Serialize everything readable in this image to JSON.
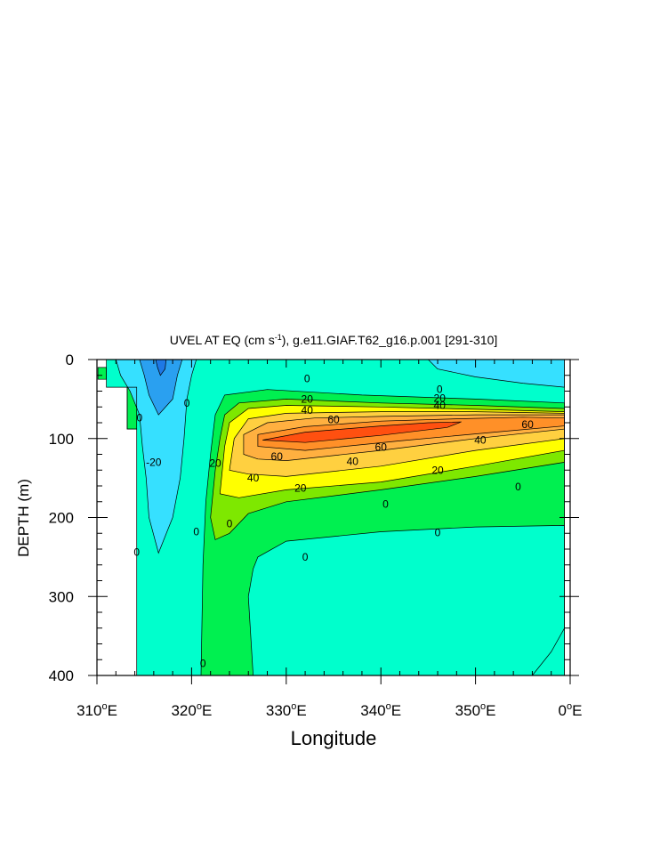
{
  "chart_data": {
    "type": "contour",
    "title": "UVEL AT EQ (cm s⁻¹), g.e11.GIAF.T62_g16.p.001 [291-310]",
    "title_main": "UVEL AT EQ (cm s",
    "title_sup": "-1",
    "title_rest": "), g.e11.GIAF.T62_g16.p.001 [291-310]",
    "xlabel": "Longitude",
    "ylabel": "DEPTH (m)",
    "xlim": [
      310,
      360
    ],
    "ylim": [
      0,
      400
    ],
    "y_inverted": true,
    "x_ticks": [
      {
        "value": 310,
        "num": "310",
        "deg": "o",
        "suf": "E"
      },
      {
        "value": 320,
        "num": "320",
        "deg": "o",
        "suf": "E"
      },
      {
        "value": 330,
        "num": "330",
        "deg": "o",
        "suf": "E"
      },
      {
        "value": 340,
        "num": "340",
        "deg": "o",
        "suf": "E"
      },
      {
        "value": 350,
        "num": "350",
        "deg": "o",
        "suf": "E"
      },
      {
        "value": 360,
        "num": "0",
        "deg": "o",
        "suf": "E"
      }
    ],
    "y_ticks": [
      {
        "value": 0,
        "label": "0"
      },
      {
        "value": 100,
        "label": "100"
      },
      {
        "value": 200,
        "label": "200"
      },
      {
        "value": 300,
        "label": "300"
      },
      {
        "value": 400,
        "label": "400"
      }
    ],
    "fill_levels": [
      {
        "min": -40,
        "max": -30,
        "color": "#1e78e6"
      },
      {
        "min": -30,
        "max": -20,
        "color": "#2aa0f0"
      },
      {
        "min": -20,
        "max": -10,
        "color": "#36e0ff"
      },
      {
        "min": -10,
        "max": 0,
        "color": "#00ffcc"
      },
      {
        "min": 0,
        "max": 10,
        "color": "#00f050"
      },
      {
        "min": 10,
        "max": 20,
        "color": "#7ee800"
      },
      {
        "min": 20,
        "max": 30,
        "color": "#ffff00"
      },
      {
        "min": 30,
        "max": 40,
        "color": "#ffd040"
      },
      {
        "min": 40,
        "max": 50,
        "color": "#ffb040"
      },
      {
        "min": 50,
        "max": 60,
        "color": "#ff9028"
      },
      {
        "min": 60,
        "max": 70,
        "color": "#ff5010"
      }
    ],
    "regions": [
      {
        "value": -5,
        "poly": [
          [
            311,
            0
          ],
          [
            359.4,
            0
          ],
          [
            359.4,
            400
          ],
          [
            314.2,
            400
          ],
          [
            314.2,
            88
          ],
          [
            313.2,
            88
          ],
          [
            313.2,
            35
          ],
          [
            311,
            35
          ]
        ]
      },
      {
        "value": 5,
        "poly": [
          [
            321,
            400
          ],
          [
            321.2,
            260
          ],
          [
            321.5,
            180
          ],
          [
            322,
            120
          ],
          [
            322.5,
            70
          ],
          [
            323.5,
            45
          ],
          [
            328,
            38
          ],
          [
            338,
            45
          ],
          [
            350,
            50
          ],
          [
            359.4,
            55
          ],
          [
            359.4,
            340
          ],
          [
            358,
            370
          ],
          [
            356,
            400
          ]
        ]
      },
      {
        "value": 5,
        "poly": [
          [
            310.1,
            10
          ],
          [
            311,
            10
          ],
          [
            311,
            25
          ],
          [
            310.1,
            25
          ]
        ]
      },
      {
        "value": 5,
        "poly": [
          [
            313.2,
            35
          ],
          [
            314.2,
            35
          ],
          [
            314.2,
            88
          ],
          [
            313.2,
            88
          ]
        ]
      },
      {
        "value": -15,
        "poly": [
          [
            312,
            0
          ],
          [
            320.5,
            0
          ],
          [
            320,
            20
          ],
          [
            319.5,
            50
          ],
          [
            319.2,
            100
          ],
          [
            318.8,
            150
          ],
          [
            318,
            200
          ],
          [
            316.5,
            245
          ],
          [
            315.5,
            200
          ],
          [
            315.2,
            150
          ],
          [
            314.8,
            110
          ],
          [
            314.5,
            70
          ],
          [
            313.5,
            40
          ],
          [
            312.5,
            20
          ]
        ]
      },
      {
        "value": -15,
        "poly": [
          [
            345,
            0
          ],
          [
            359.4,
            0
          ],
          [
            359.4,
            35
          ],
          [
            355,
            30
          ],
          [
            350,
            22
          ],
          [
            346,
            12
          ]
        ]
      },
      {
        "value": -25,
        "poly": [
          [
            314.5,
            0
          ],
          [
            319,
            0
          ],
          [
            318.5,
            20
          ],
          [
            318,
            50
          ],
          [
            316.5,
            70
          ],
          [
            315.5,
            45
          ],
          [
            315,
            20
          ]
        ]
      },
      {
        "value": -35,
        "poly": [
          [
            316.2,
            0
          ],
          [
            317.3,
            0
          ],
          [
            317.2,
            12
          ],
          [
            316.7,
            20
          ],
          [
            316.4,
            10
          ]
        ]
      },
      {
        "value": -5,
        "poly": [
          [
            326.5,
            400
          ],
          [
            326,
            300
          ],
          [
            326.5,
            265
          ],
          [
            327,
            250
          ],
          [
            330,
            230
          ],
          [
            340,
            218
          ],
          [
            350,
            212
          ],
          [
            359.4,
            210
          ],
          [
            359.4,
            400
          ]
        ]
      },
      {
        "value": 15,
        "poly": [
          [
            322,
            200
          ],
          [
            322.5,
            140
          ],
          [
            323,
            100
          ],
          [
            323.5,
            70
          ],
          [
            325,
            55
          ],
          [
            330,
            50
          ],
          [
            340,
            55
          ],
          [
            350,
            58
          ],
          [
            359.4,
            62
          ],
          [
            359.4,
            130
          ],
          [
            350,
            148
          ],
          [
            340,
            165
          ],
          [
            330,
            180
          ],
          [
            326,
            195
          ],
          [
            324,
            220
          ],
          [
            322.5,
            228
          ]
        ]
      },
      {
        "value": 25,
        "poly": [
          [
            323,
            170
          ],
          [
            323.5,
            110
          ],
          [
            324,
            80
          ],
          [
            326,
            62
          ],
          [
            330,
            58
          ],
          [
            340,
            60
          ],
          [
            350,
            63
          ],
          [
            359.4,
            66
          ],
          [
            359.4,
            115
          ],
          [
            350,
            135
          ],
          [
            340,
            155
          ],
          [
            330,
            165
          ],
          [
            325,
            175
          ]
        ]
      },
      {
        "value": 35,
        "poly": [
          [
            324,
            140
          ],
          [
            324.5,
            100
          ],
          [
            326,
            75
          ],
          [
            330,
            68
          ],
          [
            340,
            66
          ],
          [
            350,
            66
          ],
          [
            359.4,
            68
          ],
          [
            359.4,
            100
          ],
          [
            350,
            115
          ],
          [
            340,
            135
          ],
          [
            330,
            148
          ],
          [
            326,
            145
          ]
        ]
      },
      {
        "value": 45,
        "poly": [
          [
            325.5,
            120
          ],
          [
            325.5,
            95
          ],
          [
            328,
            80
          ],
          [
            333,
            74
          ],
          [
            340,
            72
          ],
          [
            350,
            70
          ],
          [
            359.4,
            70
          ],
          [
            359.4,
            88
          ],
          [
            350,
            100
          ],
          [
            340,
            115
          ],
          [
            330,
            128
          ],
          [
            327,
            126
          ]
        ]
      },
      {
        "value": 55,
        "poly": [
          [
            327,
            110
          ],
          [
            327,
            95
          ],
          [
            332,
            85
          ],
          [
            340,
            78
          ],
          [
            348,
            75
          ],
          [
            355,
            73
          ],
          [
            359.4,
            74
          ],
          [
            359.4,
            84
          ],
          [
            352,
            92
          ],
          [
            342,
            103
          ],
          [
            332,
            115
          ]
        ]
      },
      {
        "value": 65,
        "poly": [
          [
            327.5,
            102
          ],
          [
            332,
            92
          ],
          [
            340,
            84
          ],
          [
            345,
            80
          ],
          [
            348.5,
            79
          ],
          [
            347,
            86
          ],
          [
            340,
            96
          ],
          [
            332,
            105
          ]
        ]
      }
    ],
    "contour_labels": [
      {
        "x": 332.2,
        "y": 24,
        "text": "0"
      },
      {
        "x": 332.2,
        "y": 50,
        "text": "20"
      },
      {
        "x": 332.2,
        "y": 64,
        "text": "40"
      },
      {
        "x": 335,
        "y": 76,
        "text": "60"
      },
      {
        "x": 346.2,
        "y": 38,
        "text": "0"
      },
      {
        "x": 346.2,
        "y": 49,
        "text": "20"
      },
      {
        "x": 346.2,
        "y": 58,
        "text": "40"
      },
      {
        "x": 329,
        "y": 123,
        "text": "60"
      },
      {
        "x": 340,
        "y": 111,
        "text": "60"
      },
      {
        "x": 355.5,
        "y": 82,
        "text": "60"
      },
      {
        "x": 350.5,
        "y": 102,
        "text": "40"
      },
      {
        "x": 337,
        "y": 129,
        "text": "40"
      },
      {
        "x": 326.5,
        "y": 150,
        "text": "40"
      },
      {
        "x": 322.5,
        "y": 131,
        "text": "20"
      },
      {
        "x": 319.5,
        "y": 55,
        "text": "0"
      },
      {
        "x": 314.5,
        "y": 74,
        "text": "0"
      },
      {
        "x": 316,
        "y": 130,
        "text": "-20"
      },
      {
        "x": 331.5,
        "y": 163,
        "text": "20"
      },
      {
        "x": 346,
        "y": 140,
        "text": "20"
      },
      {
        "x": 354.5,
        "y": 161,
        "text": "0"
      },
      {
        "x": 324,
        "y": 208,
        "text": "0"
      },
      {
        "x": 320.5,
        "y": 218,
        "text": "0"
      },
      {
        "x": 314.2,
        "y": 244,
        "text": "0"
      },
      {
        "x": 340.5,
        "y": 183,
        "text": "0"
      },
      {
        "x": 346,
        "y": 219,
        "text": "0"
      },
      {
        "x": 332,
        "y": 250,
        "text": "0"
      },
      {
        "x": 321.2,
        "y": 385,
        "text": "0"
      }
    ]
  }
}
